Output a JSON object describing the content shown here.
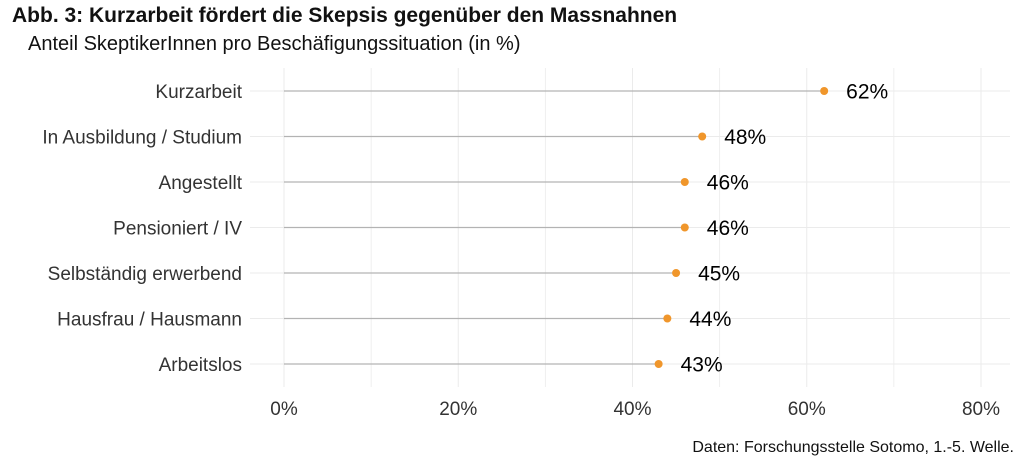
{
  "chart_data": {
    "type": "lollipop",
    "title": "Abb. 3: Kurzarbeit fördert die Skepsis gegenüber den Massnahnen",
    "subtitle": "Anteil SkeptikerInnen pro Beschäfigungssituation (in %)",
    "caption": "Daten: Forschungsstelle Sotomo, 1.-5. Welle.",
    "xlabel": "",
    "ylabel": "",
    "xlim": [
      0,
      80
    ],
    "x_ticks": [
      0,
      20,
      40,
      60,
      80
    ],
    "x_tick_labels": [
      "0%",
      "20%",
      "40%",
      "60%",
      "80%"
    ],
    "categories": [
      "Kurzarbeit",
      "In Ausbildung / Studium",
      "Angestellt",
      "Pensioniert / IV",
      "Selbständig erwerbend",
      "Hausfrau / Hausmann",
      "Arbeitslos"
    ],
    "values": [
      62,
      48,
      46,
      46,
      45,
      44,
      43
    ],
    "value_labels": [
      "62%",
      "48%",
      "46%",
      "46%",
      "45%",
      "44%",
      "43%"
    ],
    "grid": true,
    "colors": {
      "point": "#F0962B",
      "segment": "#B3B3B3",
      "grid": "#EBEBEB"
    }
  }
}
